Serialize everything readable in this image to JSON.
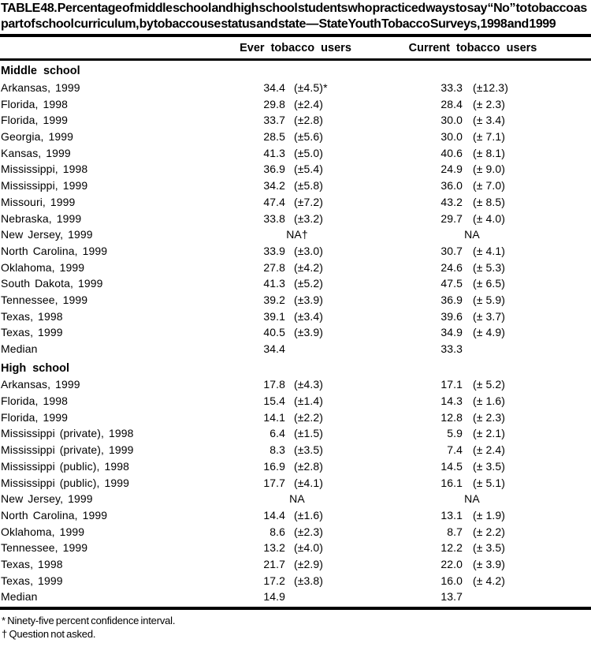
{
  "title": "TABLE 48. Percentage of middle school and high school students who practiced ways to say “No” to tobacco as part of school curriculum, by tobacco use status and state — State Youth Tobacco Surveys, 1998 and 1999",
  "columns": {
    "ever": "Ever tobacco users",
    "current": "Current tobacco users"
  },
  "sections": [
    {
      "header": "Middle school",
      "rows": [
        {
          "label": "Arkansas, 1999",
          "ever": "34.4",
          "ever_ci": "(±4.5)*",
          "current": "33.3",
          "current_ci": "(±12.3)"
        },
        {
          "label": "Florida, 1998",
          "ever": "29.8",
          "ever_ci": "(±2.4)",
          "current": "28.4",
          "current_ci": "(± 2.3)"
        },
        {
          "label": "Florida, 1999",
          "ever": "33.7",
          "ever_ci": "(±2.8)",
          "current": "30.0",
          "current_ci": "(± 3.4)"
        },
        {
          "label": "Georgia, 1999",
          "ever": "28.5",
          "ever_ci": "(±5.6)",
          "current": "30.0",
          "current_ci": "(± 7.1)"
        },
        {
          "label": "Kansas, 1999",
          "ever": "41.3",
          "ever_ci": "(±5.0)",
          "current": "40.6",
          "current_ci": "(± 8.1)"
        },
        {
          "label": "Mississippi, 1998",
          "ever": "36.9",
          "ever_ci": "(±5.4)",
          "current": "24.9",
          "current_ci": "(± 9.0)"
        },
        {
          "label": "Mississippi, 1999",
          "ever": "34.2",
          "ever_ci": "(±5.8)",
          "current": "36.0",
          "current_ci": "(± 7.0)"
        },
        {
          "label": "Missouri, 1999",
          "ever": "47.4",
          "ever_ci": "(±7.2)",
          "current": "43.2",
          "current_ci": "(± 8.5)"
        },
        {
          "label": "Nebraska, 1999",
          "ever": "33.8",
          "ever_ci": "(±3.2)",
          "current": "29.7",
          "current_ci": "(± 4.0)"
        },
        {
          "label": "New Jersey, 1999",
          "na": true,
          "ever": "NA†",
          "current": "NA"
        },
        {
          "label": "North Carolina, 1999",
          "ever": "33.9",
          "ever_ci": "(±3.0)",
          "current": "30.7",
          "current_ci": "(± 4.1)"
        },
        {
          "label": "Oklahoma, 1999",
          "ever": "27.8",
          "ever_ci": "(±4.2)",
          "current": "24.6",
          "current_ci": "(± 5.3)"
        },
        {
          "label": "South Dakota, 1999",
          "ever": "41.3",
          "ever_ci": "(±5.2)",
          "current": "47.5",
          "current_ci": "(± 6.5)"
        },
        {
          "label": "Tennessee, 1999",
          "ever": "39.2",
          "ever_ci": "(±3.9)",
          "current": "36.9",
          "current_ci": "(± 5.9)"
        },
        {
          "label": "Texas, 1998",
          "ever": "39.1",
          "ever_ci": "(±3.4)",
          "current": "39.6",
          "current_ci": "(± 3.7)"
        },
        {
          "label": "Texas, 1999",
          "ever": "40.5",
          "ever_ci": "(±3.9)",
          "current": "34.9",
          "current_ci": "(± 4.9)"
        },
        {
          "label": "Median",
          "ever": "34.4",
          "current": "33.3"
        }
      ]
    },
    {
      "header": "High school",
      "rows": [
        {
          "label": "Arkansas, 1999",
          "ever": "17.8",
          "ever_ci": "(±4.3)",
          "current": "17.1",
          "current_ci": "(± 5.2)"
        },
        {
          "label": "Florida, 1998",
          "ever": "15.4",
          "ever_ci": "(±1.4)",
          "current": "14.3",
          "current_ci": "(± 1.6)"
        },
        {
          "label": "Florida, 1999",
          "ever": "14.1",
          "ever_ci": "(±2.2)",
          "current": "12.8",
          "current_ci": "(± 2.3)"
        },
        {
          "label": "Mississippi (private), 1998",
          "ever": "6.4",
          "ever_ci": "(±1.5)",
          "current": "5.9",
          "current_ci": "(± 2.1)"
        },
        {
          "label": "Mississippi (private), 1999",
          "ever": "8.3",
          "ever_ci": "(±3.5)",
          "current": "7.4",
          "current_ci": "(± 2.4)"
        },
        {
          "label": "Mississippi (public), 1998",
          "ever": "16.9",
          "ever_ci": "(±2.8)",
          "current": "14.5",
          "current_ci": "(± 3.5)"
        },
        {
          "label": "Mississippi (public), 1999",
          "ever": "17.7",
          "ever_ci": "(±4.1)",
          "current": "16.1",
          "current_ci": "(± 5.1)"
        },
        {
          "label": "New Jersey, 1999",
          "na": true,
          "ever": "NA",
          "current": "NA"
        },
        {
          "label": "North Carolina, 1999",
          "ever": "14.4",
          "ever_ci": "(±1.6)",
          "current": "13.1",
          "current_ci": "(± 1.9)"
        },
        {
          "label": "Oklahoma, 1999",
          "ever": "8.6",
          "ever_ci": "(±2.3)",
          "current": "8.7",
          "current_ci": "(± 2.2)"
        },
        {
          "label": "Tennessee, 1999",
          "ever": "13.2",
          "ever_ci": "(±4.0)",
          "current": "12.2",
          "current_ci": "(± 3.5)"
        },
        {
          "label": "Texas, 1998",
          "ever": "21.7",
          "ever_ci": "(±2.9)",
          "current": "22.0",
          "current_ci": "(± 3.9)"
        },
        {
          "label": "Texas, 1999",
          "ever": "17.2",
          "ever_ci": "(±3.8)",
          "current": "16.0",
          "current_ci": "(± 4.2)"
        },
        {
          "label": "Median",
          "ever": "14.9",
          "current": "13.7"
        }
      ]
    }
  ],
  "footnotes": [
    "* Ninety-five percent confidence interval.",
    "† Question not asked."
  ]
}
